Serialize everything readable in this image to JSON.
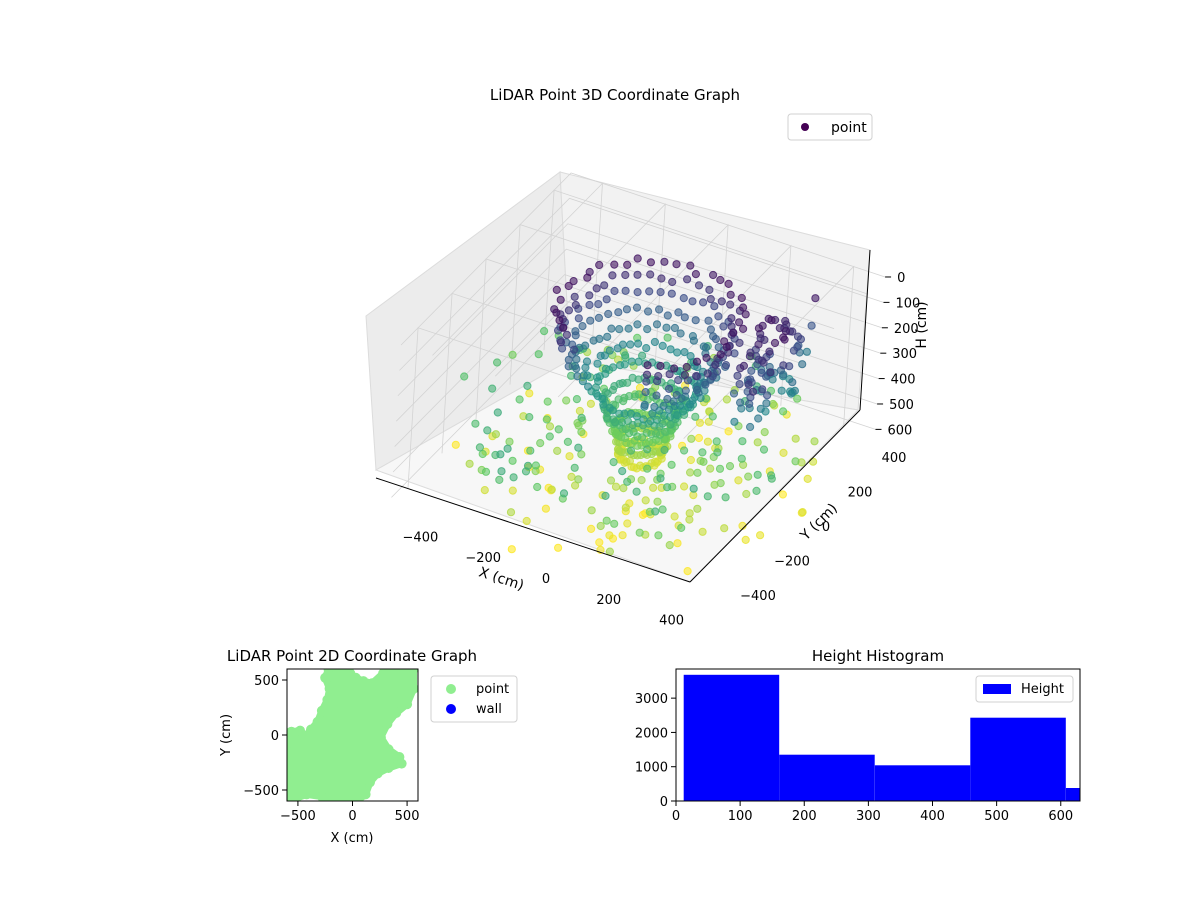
{
  "chart_data": [
    {
      "type": "scatter3d",
      "title": "LiDAR Point 3D Coordinate Graph",
      "xlabel": "X (cm)",
      "ylabel": "Y (cm)",
      "zlabel": "H (cm)",
      "xticks": [
        -400,
        -200,
        0,
        200,
        400
      ],
      "yticks": [
        -400,
        -200,
        0,
        200,
        400
      ],
      "zticks": [
        0,
        100,
        200,
        300,
        400,
        500,
        600
      ],
      "xlim": [
        -500,
        500
      ],
      "ylim": [
        -500,
        500
      ],
      "zlim": [
        0,
        630
      ],
      "z_axis_inverted": true,
      "colormap": "viridis",
      "legend": [
        {
          "name": "point",
          "color": "#440154"
        }
      ],
      "legend_position": "upper-right",
      "grid": true,
      "series": [
        {
          "name": "point",
          "description_values": "dense funnel-shaped scan: ring of points at radius ~250 cm near H 0–300 cm, tapering to a cluster near X 0, Y 0 at H ~400–600 cm, with scattered points farther out",
          "rings": [
            {
              "h": 40,
              "r": 260
            },
            {
              "h": 90,
              "r": 250
            },
            {
              "h": 140,
              "r": 235
            },
            {
              "h": 190,
              "r": 215
            },
            {
              "h": 240,
              "r": 190
            },
            {
              "h": 290,
              "r": 165
            },
            {
              "h": 340,
              "r": 140
            },
            {
              "h": 390,
              "r": 115
            },
            {
              "h": 440,
              "r": 95
            },
            {
              "h": 490,
              "r": 80
            },
            {
              "h": 540,
              "r": 70
            },
            {
              "h": 590,
              "r": 60
            }
          ]
        }
      ]
    },
    {
      "type": "scatter",
      "title": "LiDAR Point 2D Coordinate Graph",
      "xlabel": "X (cm)",
      "ylabel": "Y (cm)",
      "xticks": [
        -500,
        0,
        500
      ],
      "yticks": [
        -500,
        0,
        500
      ],
      "xlim": [
        -600,
        600
      ],
      "ylim": [
        -600,
        600
      ],
      "legend": [
        {
          "name": "point",
          "color": "#90ee90"
        },
        {
          "name": "wall",
          "color": "#0000ff"
        }
      ],
      "legend_position": "outside-right",
      "series": [
        {
          "name": "point",
          "color": "#90ee90",
          "region_polygon": [
            [
              -220,
              600
            ],
            [
              -100,
              590
            ],
            [
              -20,
              560
            ],
            [
              30,
              520
            ],
            [
              100,
              490
            ],
            [
              180,
              470
            ],
            [
              280,
              560
            ],
            [
              400,
              580
            ],
            [
              560,
              600
            ],
            [
              560,
              420
            ],
            [
              500,
              280
            ],
            [
              400,
              200
            ],
            [
              320,
              100
            ],
            [
              260,
              -20
            ],
            [
              330,
              -130
            ],
            [
              430,
              -200
            ],
            [
              450,
              -260
            ],
            [
              330,
              -300
            ],
            [
              230,
              -350
            ],
            [
              160,
              -430
            ],
            [
              120,
              -540
            ],
            [
              40,
              -600
            ],
            [
              -120,
              -600
            ],
            [
              -280,
              -560
            ],
            [
              -420,
              -540
            ],
            [
              -580,
              -600
            ],
            [
              -600,
              -420
            ],
            [
              -580,
              -250
            ],
            [
              -600,
              -80
            ],
            [
              -560,
              30
            ],
            [
              -480,
              40
            ],
            [
              -450,
              -30
            ],
            [
              -380,
              50
            ],
            [
              -320,
              120
            ],
            [
              -280,
              220
            ],
            [
              -230,
              320
            ],
            [
              -210,
              420
            ],
            [
              -250,
              520
            ]
          ]
        },
        {
          "name": "wall",
          "color": "#0000ff",
          "x": [],
          "y": []
        }
      ]
    },
    {
      "type": "bar",
      "title": "Height Histogram",
      "xticks": [
        0,
        100,
        200,
        300,
        400,
        500,
        600
      ],
      "yticks": [
        0,
        1000,
        2000,
        3000
      ],
      "xlim": [
        0,
        630
      ],
      "ylim": [
        0,
        3850
      ],
      "legend": [
        {
          "name": "Height",
          "color": "#0000ff"
        }
      ],
      "legend_position": "upper-right",
      "series": [
        {
          "name": "Height",
          "color": "#0000ff",
          "bins": [
            {
              "x0": 12,
              "x1": 161,
              "count": 3680
            },
            {
              "x0": 161,
              "x1": 310,
              "count": 1350
            },
            {
              "x0": 310,
              "x1": 459,
              "count": 1040
            },
            {
              "x0": 459,
              "x1": 608,
              "count": 2430
            },
            {
              "x0": 608,
              "x1": 630,
              "count": 380
            }
          ]
        }
      ]
    }
  ]
}
